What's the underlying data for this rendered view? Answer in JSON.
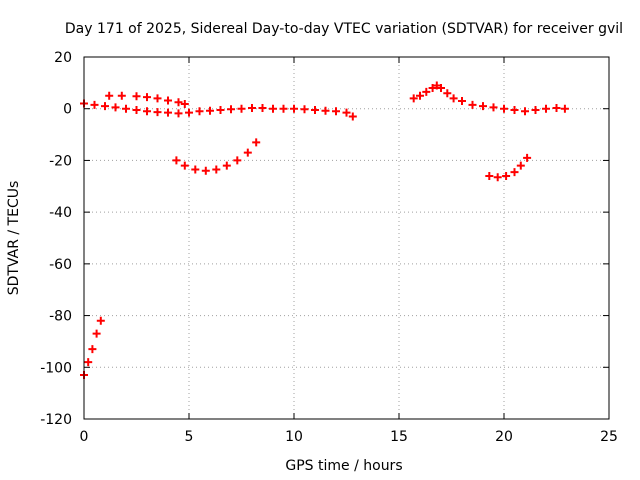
{
  "chart_data": {
    "type": "scatter",
    "title": "Day 171 of 2025, Sidereal Day-to-day VTEC variation (SDTVAR) for receiver gvil",
    "xlabel": "GPS time / hours",
    "ylabel": "SDTVAR / TECUs",
    "xlim": [
      0,
      25
    ],
    "ylim": [
      -120,
      20
    ],
    "xticks": [
      0,
      5,
      10,
      15,
      20,
      25
    ],
    "yticks": [
      -120,
      -100,
      -80,
      -60,
      -40,
      -20,
      0,
      20
    ],
    "grid": true,
    "grid_style": "dotted",
    "marker": "plus",
    "color": "#ff0000",
    "series": [
      {
        "values": [
          [
            0.0,
            -103
          ],
          [
            0.2,
            -98
          ],
          [
            0.4,
            -93
          ],
          [
            0.6,
            -87
          ],
          [
            0.8,
            -82
          ],
          [
            0.0,
            2
          ],
          [
            0.5,
            1.5
          ],
          [
            1.0,
            1
          ],
          [
            1.5,
            0.5
          ],
          [
            2.0,
            0
          ],
          [
            2.5,
            -0.5
          ],
          [
            3.0,
            -1
          ],
          [
            3.5,
            -1.3
          ],
          [
            4.0,
            -1.5
          ],
          [
            4.5,
            -1.8
          ],
          [
            5.0,
            -1.5
          ],
          [
            5.5,
            -1
          ],
          [
            6.0,
            -0.8
          ],
          [
            6.5,
            -0.5
          ],
          [
            7.0,
            -0.2
          ],
          [
            7.5,
            0
          ],
          [
            8.0,
            0.3
          ],
          [
            8.5,
            0.3
          ],
          [
            9.0,
            0
          ],
          [
            9.5,
            0
          ],
          [
            10.0,
            0
          ],
          [
            10.5,
            -0.2
          ],
          [
            11.0,
            -0.5
          ],
          [
            11.5,
            -0.8
          ],
          [
            12.0,
            -1
          ],
          [
            12.5,
            -1.5
          ],
          [
            12.8,
            -3
          ],
          [
            1.2,
            5
          ],
          [
            1.8,
            5
          ],
          [
            2.5,
            4.8
          ],
          [
            3.0,
            4.5
          ],
          [
            3.5,
            4
          ],
          [
            4.0,
            3.2
          ],
          [
            4.5,
            2.5
          ],
          [
            4.8,
            1.8
          ],
          [
            4.4,
            -20
          ],
          [
            4.8,
            -22
          ],
          [
            5.3,
            -23.5
          ],
          [
            5.8,
            -24
          ],
          [
            6.3,
            -23.5
          ],
          [
            6.8,
            -22
          ],
          [
            7.3,
            -20
          ],
          [
            7.8,
            -17
          ],
          [
            8.2,
            -13
          ],
          [
            15.7,
            4
          ],
          [
            16.0,
            5
          ],
          [
            16.3,
            6.5
          ],
          [
            16.6,
            8
          ],
          [
            16.8,
            9
          ],
          [
            17.0,
            8
          ],
          [
            17.3,
            6
          ],
          [
            17.6,
            4
          ],
          [
            18.0,
            3
          ],
          [
            18.5,
            1.5
          ],
          [
            19.0,
            1
          ],
          [
            19.5,
            0.5
          ],
          [
            20.0,
            0
          ],
          [
            20.5,
            -0.5
          ],
          [
            21.0,
            -1
          ],
          [
            21.5,
            -0.5
          ],
          [
            22.0,
            0
          ],
          [
            22.5,
            0.3
          ],
          [
            22.9,
            0
          ],
          [
            19.3,
            -26
          ],
          [
            19.7,
            -26.5
          ],
          [
            20.1,
            -26
          ],
          [
            20.5,
            -24.5
          ],
          [
            20.8,
            -22
          ],
          [
            21.1,
            -19
          ]
        ]
      }
    ]
  }
}
